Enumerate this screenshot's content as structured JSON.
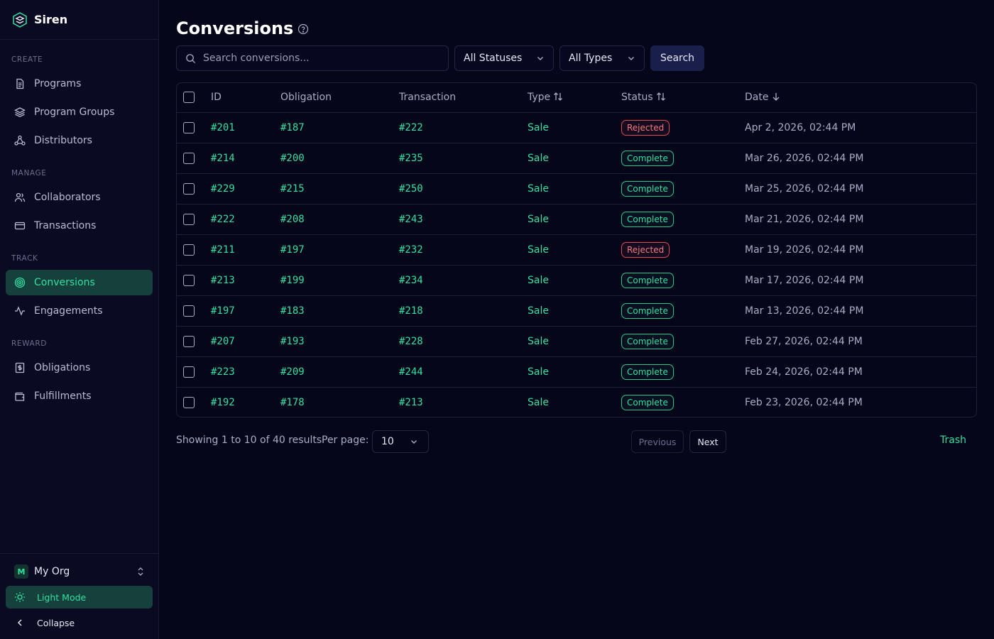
{
  "app": {
    "name": "Siren"
  },
  "sidebar": {
    "sections": [
      {
        "title": "CREATE",
        "items": [
          {
            "label": "Programs",
            "icon": "document-icon"
          },
          {
            "label": "Program Groups",
            "icon": "layers-icon"
          },
          {
            "label": "Distributors",
            "icon": "network-icon"
          }
        ]
      },
      {
        "title": "MANAGE",
        "items": [
          {
            "label": "Collaborators",
            "icon": "users-icon"
          },
          {
            "label": "Transactions",
            "icon": "card-icon"
          }
        ]
      },
      {
        "title": "TRACK",
        "items": [
          {
            "label": "Conversions",
            "icon": "target-icon",
            "active": true
          },
          {
            "label": "Engagements",
            "icon": "activity-icon"
          }
        ]
      },
      {
        "title": "REWARD",
        "items": [
          {
            "label": "Obligations",
            "icon": "receipt-icon"
          },
          {
            "label": "Fulfillments",
            "icon": "wallet-icon"
          }
        ]
      }
    ],
    "org": {
      "initial": "M",
      "name": "My Org"
    },
    "light_mode": "Light Mode",
    "collapse": "Collapse"
  },
  "page": {
    "title": "Conversions"
  },
  "filters": {
    "search_placeholder": "Search conversions...",
    "status_select": "All Statuses",
    "type_select": "All Types",
    "search_button": "Search"
  },
  "table": {
    "headers": {
      "id": "ID",
      "obligation": "Obligation",
      "transaction": "Transaction",
      "type": "Type",
      "status": "Status",
      "date": "Date"
    },
    "rows": [
      {
        "id": "#201",
        "obligation": "#187",
        "transaction": "#222",
        "type": "Sale",
        "status": "Rejected",
        "date": "Apr 2, 2026, 02:44 PM"
      },
      {
        "id": "#214",
        "obligation": "#200",
        "transaction": "#235",
        "type": "Sale",
        "status": "Complete",
        "date": "Mar 26, 2026, 02:44 PM"
      },
      {
        "id": "#229",
        "obligation": "#215",
        "transaction": "#250",
        "type": "Sale",
        "status": "Complete",
        "date": "Mar 25, 2026, 02:44 PM"
      },
      {
        "id": "#222",
        "obligation": "#208",
        "transaction": "#243",
        "type": "Sale",
        "status": "Complete",
        "date": "Mar 21, 2026, 02:44 PM"
      },
      {
        "id": "#211",
        "obligation": "#197",
        "transaction": "#232",
        "type": "Sale",
        "status": "Rejected",
        "date": "Mar 19, 2026, 02:44 PM"
      },
      {
        "id": "#213",
        "obligation": "#199",
        "transaction": "#234",
        "type": "Sale",
        "status": "Complete",
        "date": "Mar 17, 2026, 02:44 PM"
      },
      {
        "id": "#197",
        "obligation": "#183",
        "transaction": "#218",
        "type": "Sale",
        "status": "Complete",
        "date": "Mar 13, 2026, 02:44 PM"
      },
      {
        "id": "#207",
        "obligation": "#193",
        "transaction": "#228",
        "type": "Sale",
        "status": "Complete",
        "date": "Feb 27, 2026, 02:44 PM"
      },
      {
        "id": "#223",
        "obligation": "#209",
        "transaction": "#244",
        "type": "Sale",
        "status": "Complete",
        "date": "Feb 24, 2026, 02:44 PM"
      },
      {
        "id": "#192",
        "obligation": "#178",
        "transaction": "#213",
        "type": "Sale",
        "status": "Complete",
        "date": "Feb 23, 2026, 02:44 PM"
      }
    ]
  },
  "pagination": {
    "showing": "Showing 1 to 10 of 40 results",
    "per_page_label": "Per page:",
    "per_page_value": "10",
    "previous": "Previous",
    "next": "Next",
    "trash": "Trash"
  },
  "colors": {
    "background": "#05061a",
    "sidebar": "#0a0b22",
    "accent": "#34e0a1",
    "active_bg": "#16403b",
    "rejected": "#e04a55"
  }
}
